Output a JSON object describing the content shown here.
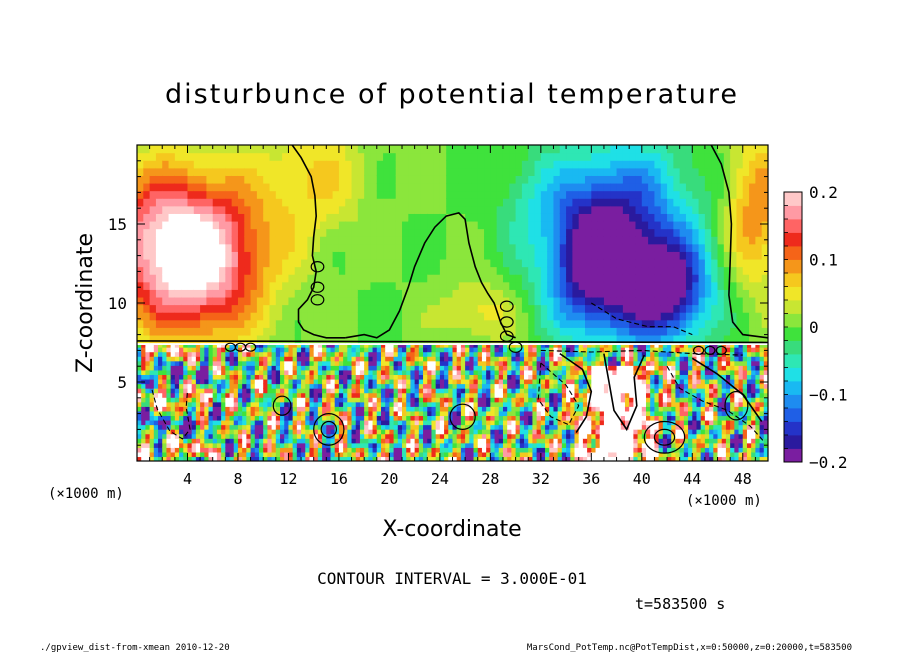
{
  "chart_data": {
    "type": "heatmap",
    "title": "disturbunce of potential temperature",
    "xlabel": "X-coordinate",
    "ylabel": "Z-coordinate",
    "x_unit_label": "(×1000 m)",
    "x_unit_label_right": "(×1000 m)",
    "xlim": [
      0,
      50
    ],
    "ylim": [
      0,
      20
    ],
    "x_ticks": [
      4,
      8,
      12,
      16,
      20,
      24,
      28,
      32,
      36,
      40,
      44,
      48
    ],
    "y_ticks": [
      5,
      10,
      15
    ],
    "colorbar": {
      "range": [
        -0.2,
        0.2
      ],
      "tick_values": [
        0.2,
        0.1,
        0,
        -0.1,
        -0.2
      ],
      "tick_labels": [
        "0.2",
        "0.1",
        "0",
        "−0.1",
        "−0.2"
      ],
      "colors": [
        "#7a1ea0",
        "#2a1a9e",
        "#2433c8",
        "#1f5fe6",
        "#1e8cf0",
        "#19b9f2",
        "#1fe0e6",
        "#2ee7b4",
        "#38dc7c",
        "#3fe23c",
        "#8be63c",
        "#c8e632",
        "#f0e628",
        "#f5c81e",
        "#f5961a",
        "#f56418",
        "#ee2a1c",
        "#ff6464",
        "#ff9aa4",
        "#ffc8c8"
      ]
    },
    "blobs": [
      {
        "x": 4.5,
        "z": 13.0,
        "sx": 5.5,
        "sz": 5.0,
        "v": 0.24
      },
      {
        "x": 0.8,
        "z": 15.0,
        "sx": 3.0,
        "sz": 4.0,
        "v": 0.05
      },
      {
        "x": 36.5,
        "z": 12.5,
        "sx": 4.0,
        "sz": 4.5,
        "v": -0.22
      },
      {
        "x": 42.0,
        "z": 11.0,
        "sx": 3.5,
        "sz": 3.5,
        "v": -0.2
      },
      {
        "x": 39.0,
        "z": 17.0,
        "sx": 6.0,
        "sz": 4.0,
        "v": -0.08
      },
      {
        "x": 49.0,
        "z": 16.0,
        "sx": 2.5,
        "sz": 5.0,
        "v": 0.1
      },
      {
        "x": 14.0,
        "z": 18.0,
        "sx": 4.0,
        "sz": 4.0,
        "v": 0.06
      },
      {
        "x": 27.0,
        "z": 9.5,
        "sx": 3.0,
        "sz": 2.0,
        "v": 0.05
      },
      {
        "x": 31.0,
        "z": 16.5,
        "sx": 3.0,
        "sz": 3.0,
        "v": -0.03
      }
    ],
    "inversion_z": 7.5,
    "contour_lines": [
      {
        "style": "solid",
        "points": [
          [
            12.3,
            20
          ],
          [
            13.0,
            19.2
          ],
          [
            13.8,
            18.0
          ],
          [
            14.1,
            16.8
          ],
          [
            14.2,
            15.5
          ],
          [
            14.0,
            14.2
          ],
          [
            13.9,
            13.0
          ],
          [
            14.2,
            12.0
          ],
          [
            14.0,
            11.0
          ],
          [
            13.5,
            10.2
          ],
          [
            12.8,
            9.6
          ],
          [
            12.8,
            8.8
          ],
          [
            13.2,
            8.3
          ],
          [
            14.0,
            8.0
          ],
          [
            15.0,
            7.8
          ],
          [
            16.5,
            7.8
          ]
        ]
      },
      {
        "style": "solid",
        "points": [
          [
            16.5,
            7.8
          ],
          [
            18.0,
            8.0
          ],
          [
            19.0,
            7.8
          ],
          [
            20.0,
            8.3
          ],
          [
            20.8,
            9.5
          ],
          [
            21.5,
            11.0
          ],
          [
            22.0,
            12.3
          ],
          [
            22.8,
            13.8
          ],
          [
            23.6,
            14.8
          ],
          [
            24.5,
            15.5
          ],
          [
            25.5,
            15.7
          ],
          [
            26.0,
            15.3
          ],
          [
            26.3,
            13.8
          ],
          [
            26.8,
            12.3
          ],
          [
            27.3,
            11.3
          ],
          [
            27.8,
            10.6
          ],
          [
            28.3,
            10.0
          ],
          [
            28.8,
            8.8
          ],
          [
            29.3,
            8.0
          ],
          [
            30.0,
            7.8
          ]
        ]
      },
      {
        "style": "solid",
        "points": [
          [
            45.5,
            20
          ],
          [
            46.3,
            18.8
          ],
          [
            46.9,
            17.0
          ],
          [
            47.1,
            15.0
          ],
          [
            47.0,
            12.5
          ],
          [
            46.9,
            10.5
          ],
          [
            47.2,
            8.8
          ],
          [
            48.0,
            8.0
          ],
          [
            50.0,
            7.8
          ]
        ]
      },
      {
        "style": "solid",
        "points": [
          [
            0.0,
            7.6
          ],
          [
            50.0,
            7.5
          ]
        ]
      },
      {
        "style": "dashed",
        "points": [
          [
            1.2,
            4.5
          ],
          [
            1.6,
            3.3
          ],
          [
            2.6,
            1.9
          ],
          [
            3.6,
            1.4
          ],
          [
            4.2,
            2.0
          ],
          [
            3.9,
            3.4
          ],
          [
            4.0,
            4.5
          ]
        ]
      },
      {
        "style": "dashed",
        "points": [
          [
            32.0,
            6.2
          ],
          [
            34.0,
            4.8
          ],
          [
            35.0,
            3.5
          ],
          [
            34.2,
            2.3
          ],
          [
            32.8,
            2.8
          ],
          [
            31.8,
            3.9
          ],
          [
            32.0,
            6.2
          ]
        ]
      },
      {
        "style": "solid",
        "points": [
          [
            33.5,
            6.8
          ],
          [
            35.3,
            5.8
          ],
          [
            36.0,
            4.4
          ],
          [
            35.6,
            2.8
          ],
          [
            34.8,
            1.8
          ]
        ]
      },
      {
        "style": "solid",
        "points": [
          [
            37.0,
            6.8
          ],
          [
            37.4,
            5.0
          ],
          [
            37.8,
            3.2
          ],
          [
            38.8,
            2.0
          ],
          [
            39.6,
            3.5
          ],
          [
            39.4,
            5.3
          ],
          [
            40.2,
            6.7
          ]
        ]
      },
      {
        "style": "solid",
        "points": [
          [
            44.0,
            6.5
          ],
          [
            46.0,
            5.5
          ],
          [
            48.0,
            4.2
          ],
          [
            49.5,
            2.5
          ]
        ]
      },
      {
        "style": "dashed",
        "points": [
          [
            42.0,
            6.0
          ],
          [
            43.0,
            4.6
          ],
          [
            44.8,
            3.8
          ],
          [
            46.8,
            3.2
          ],
          [
            48.6,
            2.2
          ],
          [
            49.6,
            1.3
          ]
        ]
      },
      {
        "style": "dashed",
        "points": [
          [
            32.0,
            7.0
          ],
          [
            36.0,
            6.9
          ],
          [
            40.0,
            7.0
          ],
          [
            44.0,
            6.8
          ],
          [
            48.0,
            6.7
          ]
        ]
      },
      {
        "style": "dashed",
        "points": [
          [
            36.0,
            10.0
          ],
          [
            38.0,
            9.0
          ],
          [
            40.5,
            8.5
          ],
          [
            42.5,
            8.5
          ],
          [
            44.0,
            8.0
          ]
        ]
      }
    ],
    "contour_loops": [
      {
        "x": 14.3,
        "z": 12.3,
        "rx": 0.5,
        "rz": 0.32
      },
      {
        "x": 14.3,
        "z": 11.0,
        "rx": 0.5,
        "rz": 0.32
      },
      {
        "x": 14.3,
        "z": 10.2,
        "rx": 0.5,
        "rz": 0.32
      },
      {
        "x": 29.3,
        "z": 9.8,
        "rx": 0.5,
        "rz": 0.32
      },
      {
        "x": 29.3,
        "z": 8.8,
        "rx": 0.5,
        "rz": 0.32
      },
      {
        "x": 29.3,
        "z": 7.9,
        "rx": 0.5,
        "rz": 0.32
      },
      {
        "x": 30.0,
        "z": 7.2,
        "rx": 0.5,
        "rz": 0.32
      },
      {
        "x": 7.4,
        "z": 7.2,
        "rx": 0.4,
        "rz": 0.25
      },
      {
        "x": 8.2,
        "z": 7.2,
        "rx": 0.4,
        "rz": 0.25
      },
      {
        "x": 9.0,
        "z": 7.2,
        "rx": 0.4,
        "rz": 0.25
      },
      {
        "x": 44.5,
        "z": 7.0,
        "rx": 0.4,
        "rz": 0.25
      },
      {
        "x": 45.4,
        "z": 7.0,
        "rx": 0.4,
        "rz": 0.25
      },
      {
        "x": 46.3,
        "z": 7.0,
        "rx": 0.4,
        "rz": 0.25
      },
      {
        "x": 15.2,
        "z": 2.0,
        "rx": 1.2,
        "rz": 1.0
      },
      {
        "x": 15.2,
        "z": 2.0,
        "rx": 0.6,
        "rz": 0.5
      },
      {
        "x": 41.8,
        "z": 1.5,
        "rx": 1.6,
        "rz": 1.0
      },
      {
        "x": 41.8,
        "z": 1.5,
        "rx": 0.8,
        "rz": 0.5
      },
      {
        "x": 11.5,
        "z": 3.5,
        "rx": 0.7,
        "rz": 0.6
      },
      {
        "x": 25.8,
        "z": 2.8,
        "rx": 1.0,
        "rz": 0.8
      },
      {
        "x": 47.5,
        "z": 3.5,
        "rx": 0.9,
        "rz": 0.9
      }
    ]
  },
  "annotations": {
    "contour_interval": "CONTOUR INTERVAL = 3.000E-01",
    "time": "t=583500 s",
    "footer_left": "./gpview_dist-from-xmean 2010-12-20",
    "footer_right": "MarsCond_PotTemp.nc@PotTempDist,x=0:50000,z=0:20000,t=583500"
  }
}
